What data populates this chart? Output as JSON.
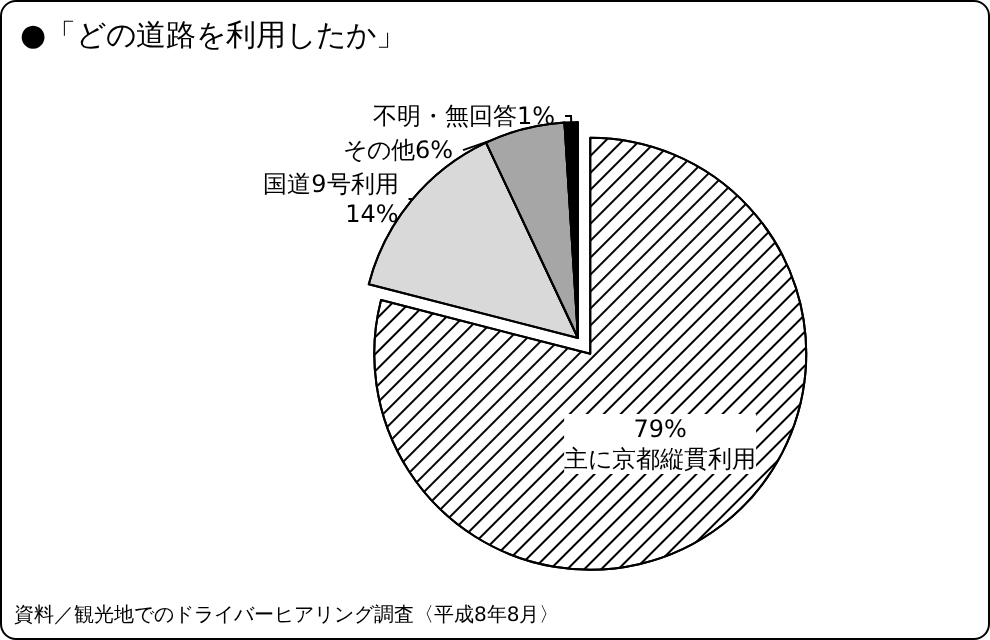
{
  "chart_data": {
    "type": "pie",
    "title": "●「どの道路を利用したか」",
    "categories": [
      "主に京都縦貫利用",
      "国道9号利用",
      "その他",
      "不明・無回答"
    ],
    "values": [
      79,
      14,
      6,
      1
    ],
    "value_labels": [
      "79%",
      "14%",
      "6%",
      "1%"
    ],
    "colors": [
      "#ffffff",
      "#d9d9d9",
      "#a6a6a6",
      "#000000"
    ],
    "annotations": [
      "資料／観光地でのドライバーヒアリング調査〈平成8年8月〉"
    ]
  }
}
